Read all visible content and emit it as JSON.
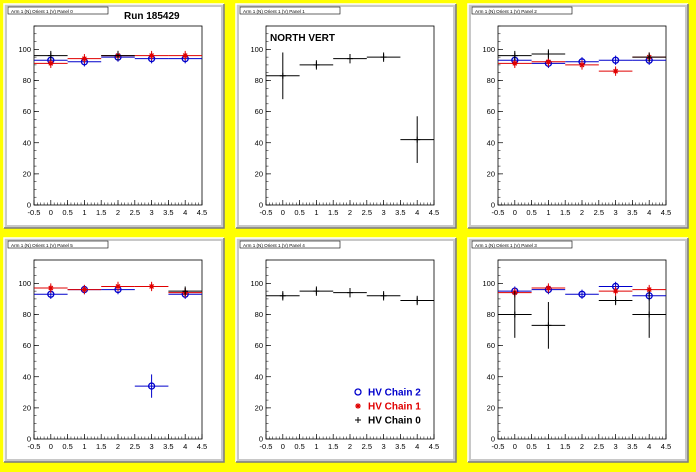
{
  "run_label": "Run 185429",
  "annotation": "NORTH VERT",
  "colors": {
    "hv2": "#0000cc",
    "hv1": "#e00000",
    "hv0": "#000000",
    "frame": "#c8c8c8",
    "canvas": "#ffff00"
  },
  "legend": [
    {
      "label": "HV Chain 2",
      "color": "#0000cc",
      "marker": "circle"
    },
    {
      "label": "HV Chain 1",
      "color": "#e00000",
      "marker": "star"
    },
    {
      "label": "HV Chain 0",
      "color": "#000000",
      "marker": "plus"
    }
  ],
  "chart_data": [
    {
      "type": "scatter",
      "title": "Arm 1 (N) Orient 1 (V) Panel 0",
      "xlim": [
        -0.5,
        4.5
      ],
      "ylim": [
        0,
        115
      ],
      "xticks": [
        "-0.5",
        "0",
        "0.5",
        "1",
        "1.5",
        "2",
        "2.5",
        "3",
        "3.5",
        "4",
        "4.5"
      ],
      "yticks": [
        "0",
        "20",
        "40",
        "60",
        "80",
        "100"
      ],
      "series": [
        {
          "name": "HV Chain 2",
          "x": [
            0,
            1,
            2,
            3,
            4
          ],
          "y": [
            93,
            92,
            95,
            94,
            94
          ]
        },
        {
          "name": "HV Chain 1",
          "x": [
            0,
            1,
            2,
            3,
            4
          ],
          "y": [
            91,
            94,
            96,
            96,
            96
          ]
        },
        {
          "name": "HV Chain 0",
          "x": [
            0,
            1,
            2,
            3,
            4
          ],
          "y": [
            96,
            null,
            96,
            null,
            null
          ]
        }
      ]
    },
    {
      "type": "scatter",
      "title": "Arm 1 (N) Orient 1 (V) Panel 1",
      "xlim": [
        -0.5,
        4.5
      ],
      "ylim": [
        0,
        115
      ],
      "xticks": [
        "-0.5",
        "0",
        "0.5",
        "1",
        "1.5",
        "2",
        "2.5",
        "3",
        "3.5",
        "4",
        "4.5"
      ],
      "yticks": [
        "0",
        "20",
        "40",
        "60",
        "80",
        "100"
      ],
      "series": [
        {
          "name": "HV Chain 0",
          "x": [
            0,
            1,
            2,
            3,
            4
          ],
          "y": [
            83,
            90,
            94,
            95,
            42
          ]
        }
      ]
    },
    {
      "type": "scatter",
      "title": "Arm 1 (N) Orient 1 (V) Panel 2",
      "xlim": [
        -0.5,
        4.5
      ],
      "ylim": [
        0,
        115
      ],
      "xticks": [
        "-0.5",
        "0",
        "0.5",
        "1",
        "1.5",
        "2",
        "2.5",
        "3",
        "3.5",
        "4",
        "4.5"
      ],
      "yticks": [
        "0",
        "20",
        "40",
        "60",
        "80",
        "100"
      ],
      "series": [
        {
          "name": "HV Chain 2",
          "x": [
            0,
            1,
            2,
            3,
            4
          ],
          "y": [
            93,
            91,
            92,
            93,
            93
          ]
        },
        {
          "name": "HV Chain 1",
          "x": [
            0,
            1,
            2,
            3,
            4
          ],
          "y": [
            91,
            92,
            90,
            86,
            95
          ]
        },
        {
          "name": "HV Chain 0",
          "x": [
            0,
            1,
            2,
            3,
            4
          ],
          "y": [
            96,
            97,
            null,
            null,
            95
          ]
        }
      ]
    },
    {
      "type": "scatter",
      "title": "Arm 1 (N) Orient 1 (V) Panel 5",
      "xlim": [
        -0.5,
        4.5
      ],
      "ylim": [
        0,
        115
      ],
      "xticks": [
        "-0.5",
        "0",
        "0.5",
        "1",
        "1.5",
        "2",
        "2.5",
        "3",
        "3.5",
        "4",
        "4.5"
      ],
      "yticks": [
        "0",
        "20",
        "40",
        "60",
        "80",
        "100"
      ],
      "series": [
        {
          "name": "HV Chain 2",
          "x": [
            0,
            1,
            2,
            3,
            4
          ],
          "y": [
            93,
            96,
            96,
            34,
            93
          ]
        },
        {
          "name": "HV Chain 1",
          "x": [
            0,
            1,
            2,
            3,
            4
          ],
          "y": [
            97,
            96,
            98,
            98,
            94
          ]
        },
        {
          "name": "HV Chain 0",
          "x": [
            0,
            1,
            2,
            3,
            4
          ],
          "y": [
            null,
            null,
            null,
            null,
            95
          ]
        }
      ]
    },
    {
      "type": "scatter",
      "title": "Arm 1 (N) Orient 1 (V) Panel 4",
      "xlim": [
        -0.5,
        4.5
      ],
      "ylim": [
        0,
        115
      ],
      "xticks": [
        "-0.5",
        "0",
        "0.5",
        "1",
        "1.5",
        "2",
        "2.5",
        "3",
        "3.5",
        "4",
        "4.5"
      ],
      "yticks": [
        "0",
        "20",
        "40",
        "60",
        "80",
        "100"
      ],
      "series": [
        {
          "name": "HV Chain 0",
          "x": [
            0,
            1,
            2,
            3,
            4
          ],
          "y": [
            92,
            95,
            94,
            92,
            89
          ]
        }
      ]
    },
    {
      "type": "scatter",
      "title": "Arm 1 (N) Orient 1 (V) Panel 3",
      "xlim": [
        -0.5,
        4.5
      ],
      "ylim": [
        0,
        115
      ],
      "xticks": [
        "-0.5",
        "0",
        "0.5",
        "1",
        "1.5",
        "2",
        "2.5",
        "3",
        "3.5",
        "4",
        "4.5"
      ],
      "yticks": [
        "0",
        "20",
        "40",
        "60",
        "80",
        "100"
      ],
      "series": [
        {
          "name": "HV Chain 2",
          "x": [
            0,
            1,
            2,
            3,
            4
          ],
          "y": [
            95,
            96,
            93,
            98,
            92
          ]
        },
        {
          "name": "HV Chain 1",
          "x": [
            0,
            1,
            2,
            3,
            4
          ],
          "y": [
            94,
            97,
            null,
            95,
            96
          ]
        },
        {
          "name": "HV Chain 0",
          "x": [
            0,
            1,
            2,
            3,
            4
          ],
          "y": [
            80,
            73,
            null,
            89,
            80
          ]
        }
      ]
    }
  ]
}
